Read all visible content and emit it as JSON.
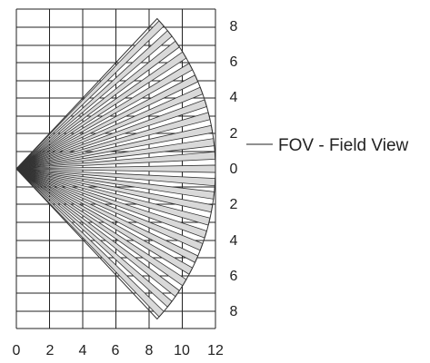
{
  "diagram": {
    "x_ticks": [
      "0",
      "2",
      "4",
      "6",
      "8",
      "10",
      "12"
    ],
    "y_ticks": [
      "8",
      "6",
      "4",
      "2",
      "0",
      "2",
      "4",
      "6",
      "8"
    ],
    "callout": "FOV - Field View",
    "beam_range": 12,
    "half_angle_deg": 45,
    "beam_count": 25,
    "colors": {
      "grid": "#222222",
      "beam_fill": "#d9d9d9",
      "beam_stroke": "#333333"
    }
  }
}
